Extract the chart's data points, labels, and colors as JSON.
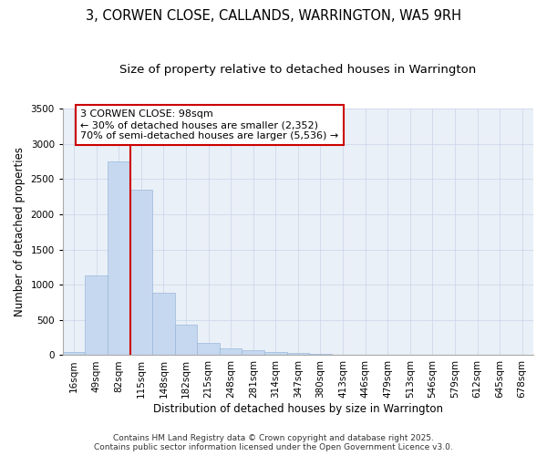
{
  "title1": "3, CORWEN CLOSE, CALLANDS, WARRINGTON, WA5 9RH",
  "title2": "Size of property relative to detached houses in Warrington",
  "xlabel": "Distribution of detached houses by size in Warrington",
  "ylabel": "Number of detached properties",
  "categories": [
    "16sqm",
    "49sqm",
    "82sqm",
    "115sqm",
    "148sqm",
    "182sqm",
    "215sqm",
    "248sqm",
    "281sqm",
    "314sqm",
    "347sqm",
    "380sqm",
    "413sqm",
    "446sqm",
    "479sqm",
    "513sqm",
    "546sqm",
    "579sqm",
    "612sqm",
    "645sqm",
    "678sqm"
  ],
  "values": [
    50,
    1130,
    2750,
    2350,
    880,
    430,
    180,
    100,
    75,
    50,
    30,
    20,
    10,
    5,
    3,
    2,
    1,
    1,
    1,
    0,
    0
  ],
  "bar_color": "#c6d8ef",
  "bar_edge_color": "#9ab8d8",
  "vline_x": 2.5,
  "vline_color": "#cc0000",
  "annotation_title": "3 CORWEN CLOSE: 98sqm",
  "annotation_line1": "← 30% of detached houses are smaller (2,352)",
  "annotation_line2": "70% of semi-detached houses are larger (5,536) →",
  "box_color": "#cc0000",
  "ylim": [
    0,
    3500
  ],
  "yticks": [
    0,
    500,
    1000,
    1500,
    2000,
    2500,
    3000,
    3500
  ],
  "grid_color": "#c8d4e8",
  "bg_color": "#eaf0f8",
  "footer1": "Contains HM Land Registry data © Crown copyright and database right 2025.",
  "footer2": "Contains public sector information licensed under the Open Government Licence v3.0.",
  "title1_fontsize": 10.5,
  "title2_fontsize": 9.5,
  "axis_label_fontsize": 8.5,
  "tick_fontsize": 7.5,
  "annotation_fontsize": 8,
  "footer_fontsize": 6.5
}
